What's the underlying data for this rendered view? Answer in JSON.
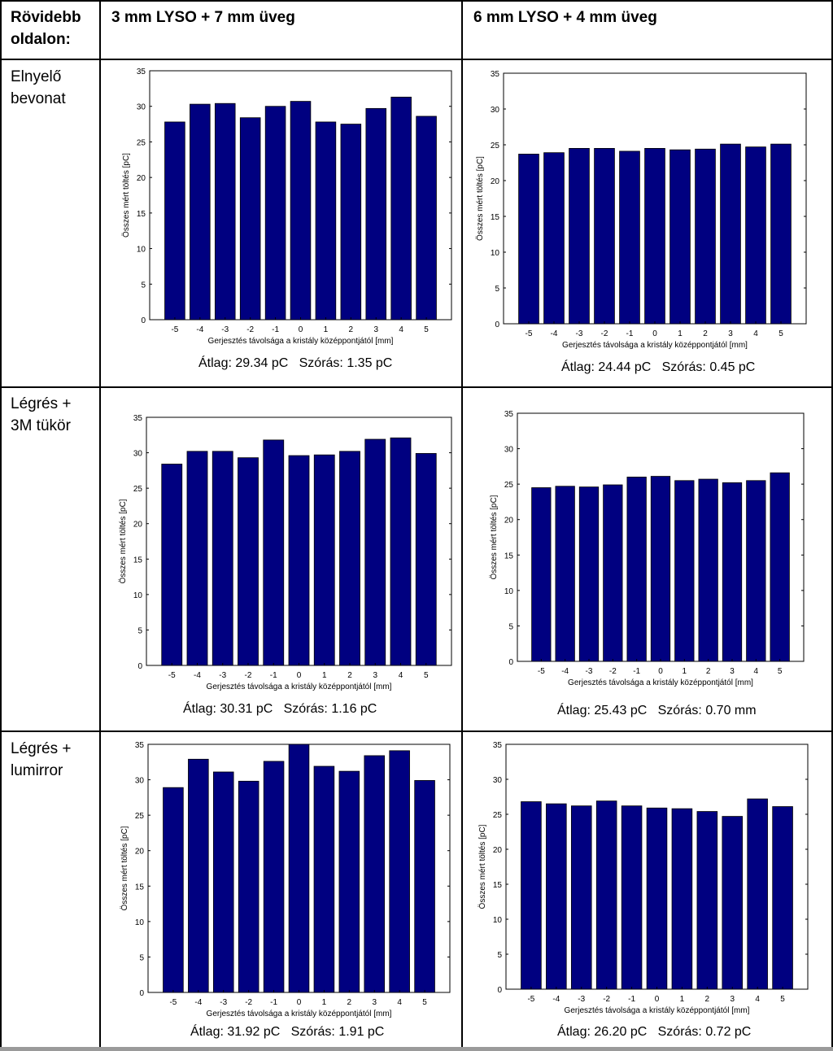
{
  "table": {
    "corner_label": "Rövidebb oldalon:",
    "col_headers": [
      "3 mm LYSO + 7 mm üveg",
      "6 mm LYSO + 4 mm üveg"
    ],
    "row_labels": [
      "Elnyelő bevonat",
      "Légrés + 3M tükör",
      "Légrés + lumirror"
    ],
    "stats": [
      [
        "Átlag: 29.34 pC   Szórás: 1.35 pC",
        "Átlag: 24.44 pC   Szórás: 0.45 pC"
      ],
      [
        "Átlag: 30.31 pC   Szórás: 1.16 pC",
        "Átlag: 25.43 pC   Szórás: 0.70 mm"
      ],
      [
        "Átlag: 31.92 pC   Szórás: 1.91 pC",
        "Átlag: 26.20 pC   Szórás: 0.72 pC"
      ]
    ]
  },
  "colors": {
    "bar": "#000080",
    "border": "#000000"
  },
  "chart_data": [
    {
      "type": "bar",
      "categories": [
        "-5",
        "-4",
        "-3",
        "-2",
        "-1",
        "0",
        "1",
        "2",
        "3",
        "4",
        "5"
      ],
      "values": [
        27.8,
        30.3,
        30.4,
        28.4,
        30.0,
        30.7,
        27.8,
        27.5,
        29.7,
        31.3,
        28.6
      ],
      "xlabel": "Gerjesztés távolsága a kristály középpontjától [mm]",
      "ylabel": "Összes mért töltés [pC]",
      "ylim": [
        0,
        35
      ],
      "yticks": [
        "0",
        "5",
        "10",
        "15",
        "20",
        "25",
        "30",
        "35"
      ]
    },
    {
      "type": "bar",
      "categories": [
        "-5",
        "-4",
        "-3",
        "-2",
        "-1",
        "0",
        "1",
        "2",
        "3",
        "4",
        "5"
      ],
      "values": [
        23.7,
        23.9,
        24.5,
        24.5,
        24.1,
        24.5,
        24.3,
        24.4,
        25.1,
        24.7,
        25.1
      ],
      "xlabel": "Gerjesztés távolsága a kristály középpontjától [mm]",
      "ylabel": "Összes mért töltés [pC]",
      "ylim": [
        0,
        35
      ],
      "yticks": [
        "0",
        "5",
        "10",
        "15",
        "20",
        "25",
        "30",
        "35"
      ]
    },
    {
      "type": "bar",
      "categories": [
        "-5",
        "-4",
        "-3",
        "-2",
        "-1",
        "0",
        "1",
        "2",
        "3",
        "4",
        "5"
      ],
      "values": [
        28.4,
        30.2,
        30.2,
        29.3,
        31.8,
        29.6,
        29.7,
        30.2,
        31.9,
        32.1,
        29.9
      ],
      "xlabel": "Gerjesztés távolsága a kristály középpontjától [mm]",
      "ylabel": "Összes mért töltés [pC]",
      "ylim": [
        0,
        35
      ],
      "yticks": [
        "0",
        "5",
        "10",
        "15",
        "20",
        "25",
        "30",
        "35"
      ]
    },
    {
      "type": "bar",
      "categories": [
        "-5",
        "-4",
        "-3",
        "-2",
        "-1",
        "0",
        "1",
        "2",
        "3",
        "4",
        "5"
      ],
      "values": [
        24.5,
        24.7,
        24.6,
        24.9,
        26.0,
        26.1,
        25.5,
        25.7,
        25.2,
        25.5,
        26.6
      ],
      "xlabel": "Gerjesztés távolsága a kristály középpontjától [mm]",
      "ylabel": "Összes mért töltés [pC]",
      "ylim": [
        0,
        35
      ],
      "yticks": [
        "0",
        "5",
        "10",
        "15",
        "20",
        "25",
        "30",
        "35"
      ]
    },
    {
      "type": "bar",
      "categories": [
        "-5",
        "-4",
        "-3",
        "-2",
        "-1",
        "0",
        "1",
        "2",
        "3",
        "4",
        "5"
      ],
      "values": [
        28.9,
        32.9,
        31.1,
        29.8,
        32.6,
        35.0,
        31.9,
        31.2,
        33.4,
        34.1,
        29.9
      ],
      "xlabel": "Gerjesztés távolsága a kristály középpontjától [mm]",
      "ylabel": "Összes mért töltés [pC]",
      "ylim": [
        0,
        35
      ],
      "yticks": [
        "0",
        "5",
        "10",
        "15",
        "20",
        "25",
        "30",
        "35"
      ]
    },
    {
      "type": "bar",
      "categories": [
        "-5",
        "-4",
        "-3",
        "-2",
        "-1",
        "0",
        "1",
        "2",
        "3",
        "4",
        "5"
      ],
      "values": [
        26.8,
        26.5,
        26.2,
        26.9,
        26.2,
        25.9,
        25.8,
        25.4,
        24.7,
        27.2,
        26.1
      ],
      "xlabel": "Gerjesztés távolsága a kristály középpontjától [mm]",
      "ylabel": "Összes mért töltés [pC]",
      "ylim": [
        0,
        35
      ],
      "yticks": [
        "0",
        "5",
        "10",
        "15",
        "20",
        "25",
        "30",
        "35"
      ]
    }
  ]
}
